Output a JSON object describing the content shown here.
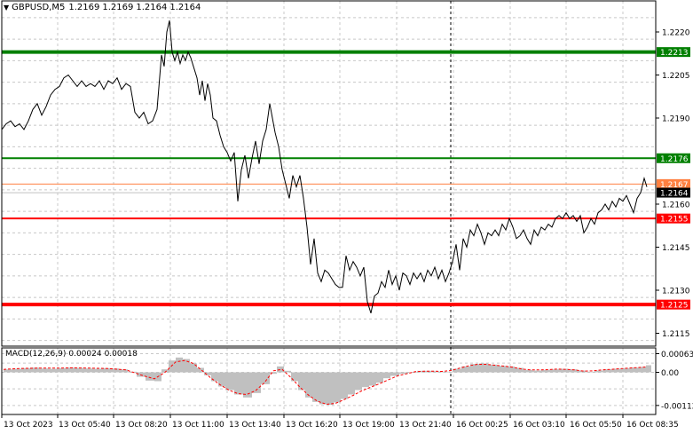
{
  "header": {
    "symbol": "GBPUSD,M5",
    "open": "1.2169",
    "high": "1.2169",
    "low": "1.2164",
    "close": "1.2164",
    "collapse_icon": "triangle-down-icon"
  },
  "macd_header": {
    "label": "MACD(12,26,9)",
    "main": "0.00024",
    "signal": "0.00018"
  },
  "colors": {
    "background": "#ffffff",
    "grid": "#c8c8c8",
    "price_line": "#000000",
    "resistance": "#008000",
    "support": "#ff0000",
    "ask_line": "#ff8040",
    "bid_line": "#c0c0c0",
    "histogram": "#c0c0c0",
    "signal_line": "#ff0000"
  },
  "chart_data": {
    "type": "line",
    "price_axis_ticks": [
      "1.2220",
      "1.2205",
      "1.2190",
      "1.2160",
      "1.2145",
      "1.2130",
      "1.2115"
    ],
    "levels": [
      {
        "value": 1.2213,
        "label": "1.2213",
        "color": "#008000",
        "style": "thick"
      },
      {
        "value": 1.2176,
        "label": "1.2176",
        "color": "#008000",
        "style": "thin"
      },
      {
        "value": 1.2167,
        "label": "1.2167",
        "color": "#ff8040",
        "style": "ask"
      },
      {
        "value": 1.2164,
        "label": "1.2164",
        "color": "#000000",
        "style": "bid"
      },
      {
        "value": 1.2155,
        "label": "1.2155",
        "color": "#ff0000",
        "style": "thin"
      },
      {
        "value": 1.2125,
        "label": "1.2125",
        "color": "#ff0000",
        "style": "thick"
      }
    ],
    "time_labels": [
      "13 Oct 2023",
      "13 Oct 05:40",
      "13 Oct 08:20",
      "13 Oct 11:00",
      "13 Oct 13:40",
      "13 Oct 16:20",
      "13 Oct 19:00",
      "13 Oct 21:40",
      "16 Oct 00:25",
      "16 Oct 03:10",
      "16 Oct 05:50",
      "16 Oct 08:35"
    ],
    "price_series": [
      [
        0,
        1.2186
      ],
      [
        5,
        1.2188
      ],
      [
        10,
        1.2189
      ],
      [
        15,
        1.2187
      ],
      [
        20,
        1.2188
      ],
      [
        25,
        1.2186
      ],
      [
        30,
        1.2189
      ],
      [
        35,
        1.2193
      ],
      [
        40,
        1.2195
      ],
      [
        45,
        1.2191
      ],
      [
        50,
        1.2194
      ],
      [
        55,
        1.2198
      ],
      [
        60,
        1.22
      ],
      [
        65,
        1.2201
      ],
      [
        70,
        1.2204
      ],
      [
        75,
        1.2205
      ],
      [
        80,
        1.2203
      ],
      [
        85,
        1.2201
      ],
      [
        90,
        1.2203
      ],
      [
        95,
        1.2201
      ],
      [
        100,
        1.2202
      ],
      [
        105,
        1.2201
      ],
      [
        110,
        1.2203
      ],
      [
        115,
        1.22
      ],
      [
        120,
        1.2203
      ],
      [
        125,
        1.2202
      ],
      [
        130,
        1.2204
      ],
      [
        135,
        1.22
      ],
      [
        140,
        1.2202
      ],
      [
        145,
        1.2201
      ],
      [
        150,
        1.2192
      ],
      [
        155,
        1.219
      ],
      [
        160,
        1.2192
      ],
      [
        165,
        1.2188
      ],
      [
        170,
        1.2189
      ],
      [
        175,
        1.2193
      ],
      [
        180,
        1.2212
      ],
      [
        183,
        1.2208
      ],
      [
        186,
        1.222
      ],
      [
        189,
        1.2224
      ],
      [
        192,
        1.2213
      ],
      [
        195,
        1.221
      ],
      [
        198,
        1.2213
      ],
      [
        201,
        1.2209
      ],
      [
        204,
        1.2212
      ],
      [
        207,
        1.221
      ],
      [
        210,
        1.2213
      ],
      [
        213,
        1.2211
      ],
      [
        216,
        1.2208
      ],
      [
        220,
        1.2204
      ],
      [
        223,
        1.2198
      ],
      [
        226,
        1.2203
      ],
      [
        229,
        1.2196
      ],
      [
        232,
        1.2202
      ],
      [
        235,
        1.2198
      ],
      [
        238,
        1.219
      ],
      [
        242,
        1.2189
      ],
      [
        246,
        1.2184
      ],
      [
        250,
        1.218
      ],
      [
        254,
        1.2178
      ],
      [
        258,
        1.2175
      ],
      [
        262,
        1.2178
      ],
      [
        266,
        1.2161
      ],
      [
        270,
        1.2172
      ],
      [
        274,
        1.2177
      ],
      [
        278,
        1.2169
      ],
      [
        282,
        1.2176
      ],
      [
        286,
        1.2182
      ],
      [
        290,
        1.2174
      ],
      [
        294,
        1.2182
      ],
      [
        298,
        1.2186
      ],
      [
        302,
        1.2195
      ],
      [
        305,
        1.219
      ],
      [
        308,
        1.2185
      ],
      [
        312,
        1.218
      ],
      [
        316,
        1.2172
      ],
      [
        320,
        1.2167
      ],
      [
        324,
        1.2162
      ],
      [
        328,
        1.217
      ],
      [
        332,
        1.2166
      ],
      [
        336,
        1.217
      ],
      [
        340,
        1.2162
      ],
      [
        344,
        1.2152
      ],
      [
        348,
        1.2139
      ],
      [
        352,
        1.2148
      ],
      [
        356,
        1.2136
      ],
      [
        360,
        1.2133
      ],
      [
        364,
        1.2137
      ],
      [
        368,
        1.2136
      ],
      [
        372,
        1.2134
      ],
      [
        376,
        1.2132
      ],
      [
        380,
        1.2131
      ],
      [
        384,
        1.2131
      ],
      [
        388,
        1.2142
      ],
      [
        392,
        1.2137
      ],
      [
        396,
        1.214
      ],
      [
        400,
        1.2138
      ],
      [
        404,
        1.2135
      ],
      [
        408,
        1.2138
      ],
      [
        412,
        1.2126
      ],
      [
        416,
        1.2122
      ],
      [
        420,
        1.2128
      ],
      [
        424,
        1.2129
      ],
      [
        428,
        1.2133
      ],
      [
        432,
        1.2131
      ],
      [
        436,
        1.2137
      ],
      [
        440,
        1.2132
      ],
      [
        444,
        1.2135
      ],
      [
        448,
        1.213
      ],
      [
        452,
        1.2136
      ],
      [
        456,
        1.2135
      ],
      [
        460,
        1.2132
      ],
      [
        464,
        1.2136
      ],
      [
        468,
        1.2134
      ],
      [
        472,
        1.2136
      ],
      [
        476,
        1.2133
      ],
      [
        480,
        1.2137
      ],
      [
        484,
        1.2135
      ],
      [
        488,
        1.2138
      ],
      [
        492,
        1.2134
      ],
      [
        496,
        1.2137
      ],
      [
        500,
        1.2133
      ],
      [
        504,
        1.2136
      ],
      [
        508,
        1.214
      ],
      [
        512,
        1.2146
      ],
      [
        516,
        1.2137
      ],
      [
        520,
        1.2148
      ],
      [
        524,
        1.2145
      ],
      [
        528,
        1.2151
      ],
      [
        532,
        1.2149
      ],
      [
        536,
        1.2153
      ],
      [
        540,
        1.215
      ],
      [
        544,
        1.2146
      ],
      [
        548,
        1.215
      ],
      [
        552,
        1.2149
      ],
      [
        556,
        1.2151
      ],
      [
        560,
        1.2149
      ],
      [
        564,
        1.2153
      ],
      [
        568,
        1.2151
      ],
      [
        572,
        1.2155
      ],
      [
        576,
        1.2152
      ],
      [
        580,
        1.2148
      ],
      [
        584,
        1.2149
      ],
      [
        588,
        1.2151
      ],
      [
        592,
        1.2148
      ],
      [
        596,
        1.2146
      ],
      [
        600,
        1.2151
      ],
      [
        604,
        1.2149
      ],
      [
        608,
        1.2152
      ],
      [
        612,
        1.2151
      ],
      [
        616,
        1.2153
      ],
      [
        620,
        1.2152
      ],
      [
        624,
        1.2155
      ],
      [
        628,
        1.2156
      ],
      [
        632,
        1.2155
      ],
      [
        636,
        1.2157
      ],
      [
        640,
        1.2155
      ],
      [
        644,
        1.2156
      ],
      [
        648,
        1.2154
      ],
      [
        652,
        1.2156
      ],
      [
        656,
        1.215
      ],
      [
        660,
        1.2152
      ],
      [
        664,
        1.2155
      ],
      [
        668,
        1.2153
      ],
      [
        672,
        1.2157
      ],
      [
        676,
        1.2158
      ],
      [
        680,
        1.216
      ],
      [
        684,
        1.2158
      ],
      [
        688,
        1.2161
      ],
      [
        692,
        1.2159
      ],
      [
        696,
        1.2162
      ],
      [
        700,
        1.2161
      ],
      [
        704,
        1.2163
      ],
      [
        708,
        1.216
      ],
      [
        712,
        1.2157
      ],
      [
        716,
        1.2162
      ],
      [
        720,
        1.2164
      ],
      [
        724,
        1.2169
      ],
      [
        727,
        1.2166
      ]
    ],
    "macd_axis_ticks": [
      "0.00063",
      "0.00",
      "-0.00112"
    ],
    "macd_histogram": [
      [
        2,
        0.0001
      ],
      [
        12,
        0.00012
      ],
      [
        22,
        0.00014
      ],
      [
        32,
        0.00016
      ],
      [
        42,
        0.00013
      ],
      [
        52,
        0.00012
      ],
      [
        62,
        0.00014
      ],
      [
        72,
        0.00016
      ],
      [
        82,
        0.00015
      ],
      [
        92,
        0.00013
      ],
      [
        102,
        0.00012
      ],
      [
        112,
        0.00014
      ],
      [
        122,
        0.00013
      ],
      [
        132,
        0.0001
      ],
      [
        142,
        2e-05
      ],
      [
        152,
        -0.00015
      ],
      [
        162,
        -0.00028
      ],
      [
        172,
        -0.0003
      ],
      [
        180,
        0.0001
      ],
      [
        188,
        0.0004
      ],
      [
        196,
        0.0005
      ],
      [
        204,
        0.00045
      ],
      [
        212,
        0.0003
      ],
      [
        220,
        0.00015
      ],
      [
        228,
        -0.0001
      ],
      [
        236,
        -0.0003
      ],
      [
        244,
        -0.00048
      ],
      [
        252,
        -0.0006
      ],
      [
        262,
        -0.00075
      ],
      [
        272,
        -0.00085
      ],
      [
        282,
        -0.0007
      ],
      [
        292,
        -0.0004
      ],
      [
        302,
        -5e-05
      ],
      [
        310,
        0.0002
      ],
      [
        318,
        5e-05
      ],
      [
        326,
        -0.0003
      ],
      [
        334,
        -0.0006
      ],
      [
        342,
        -0.00085
      ],
      [
        350,
        -0.001
      ],
      [
        358,
        -0.00108
      ],
      [
        366,
        -0.0011
      ],
      [
        374,
        -0.00102
      ],
      [
        382,
        -0.0009
      ],
      [
        390,
        -0.00075
      ],
      [
        398,
        -0.0006
      ],
      [
        406,
        -0.0005
      ],
      [
        414,
        -0.00045
      ],
      [
        422,
        -0.00035
      ],
      [
        430,
        -0.0002
      ],
      [
        438,
        -0.00012
      ],
      [
        448,
        -5e-05
      ],
      [
        458,
        0.0
      ],
      [
        468,
        5e-05
      ],
      [
        478,
        5e-05
      ],
      [
        488,
        3e-05
      ],
      [
        498,
        2e-05
      ],
      [
        508,
        0.00012
      ],
      [
        518,
        0.0002
      ],
      [
        528,
        0.00028
      ],
      [
        538,
        0.0003
      ],
      [
        548,
        0.00026
      ],
      [
        558,
        0.00022
      ],
      [
        568,
        0.0002
      ],
      [
        578,
        0.00015
      ],
      [
        588,
        8e-05
      ],
      [
        598,
        6e-05
      ],
      [
        608,
        8e-05
      ],
      [
        618,
        0.0001
      ],
      [
        628,
        0.00012
      ],
      [
        638,
        0.0001
      ],
      [
        648,
        6e-05
      ],
      [
        658,
        2e-05
      ],
      [
        668,
        6e-05
      ],
      [
        678,
        0.0001
      ],
      [
        688,
        0.00012
      ],
      [
        698,
        0.00014
      ],
      [
        708,
        0.00016
      ],
      [
        718,
        0.00018
      ],
      [
        726,
        0.00024
      ]
    ],
    "macd_signal": [
      [
        2,
        0.0001
      ],
      [
        20,
        0.00013
      ],
      [
        40,
        0.00014
      ],
      [
        60,
        0.00014
      ],
      [
        80,
        0.00015
      ],
      [
        100,
        0.00014
      ],
      [
        120,
        0.00013
      ],
      [
        140,
        8e-05
      ],
      [
        160,
        -0.00012
      ],
      [
        172,
        -0.00022
      ],
      [
        184,
        0.0
      ],
      [
        196,
        0.00035
      ],
      [
        206,
        0.0004
      ],
      [
        216,
        0.0003
      ],
      [
        226,
        5e-05
      ],
      [
        236,
        -0.0002
      ],
      [
        246,
        -0.00042
      ],
      [
        256,
        -0.0006
      ],
      [
        266,
        -0.00072
      ],
      [
        276,
        -0.00075
      ],
      [
        286,
        -0.00062
      ],
      [
        296,
        -0.00035
      ],
      [
        306,
        5e-05
      ],
      [
        316,
        0.0001
      ],
      [
        326,
        -0.00018
      ],
      [
        336,
        -0.0005
      ],
      [
        346,
        -0.00078
      ],
      [
        356,
        -0.00098
      ],
      [
        366,
        -0.00108
      ],
      [
        376,
        -0.00105
      ],
      [
        386,
        -0.00092
      ],
      [
        396,
        -0.00078
      ],
      [
        406,
        -0.00062
      ],
      [
        416,
        -0.0005
      ],
      [
        426,
        -0.00038
      ],
      [
        436,
        -0.00025
      ],
      [
        446,
        -0.00012
      ],
      [
        456,
        -5e-05
      ],
      [
        466,
        2e-05
      ],
      [
        476,
        4e-05
      ],
      [
        486,
        4e-05
      ],
      [
        496,
        3e-05
      ],
      [
        506,
        6e-05
      ],
      [
        516,
        0.00014
      ],
      [
        526,
        0.00022
      ],
      [
        536,
        0.00027
      ],
      [
        546,
        0.00027
      ],
      [
        556,
        0.00024
      ],
      [
        566,
        0.00021
      ],
      [
        576,
        0.00017
      ],
      [
        586,
        0.00011
      ],
      [
        596,
        8e-05
      ],
      [
        606,
        8e-05
      ],
      [
        616,
        9e-05
      ],
      [
        626,
        0.00011
      ],
      [
        636,
        0.0001
      ],
      [
        646,
        8e-05
      ],
      [
        656,
        4e-05
      ],
      [
        666,
        5e-05
      ],
      [
        676,
        8e-05
      ],
      [
        686,
        0.0001
      ],
      [
        696,
        0.00012
      ],
      [
        706,
        0.00014
      ],
      [
        716,
        0.00016
      ],
      [
        726,
        0.00018
      ]
    ]
  }
}
